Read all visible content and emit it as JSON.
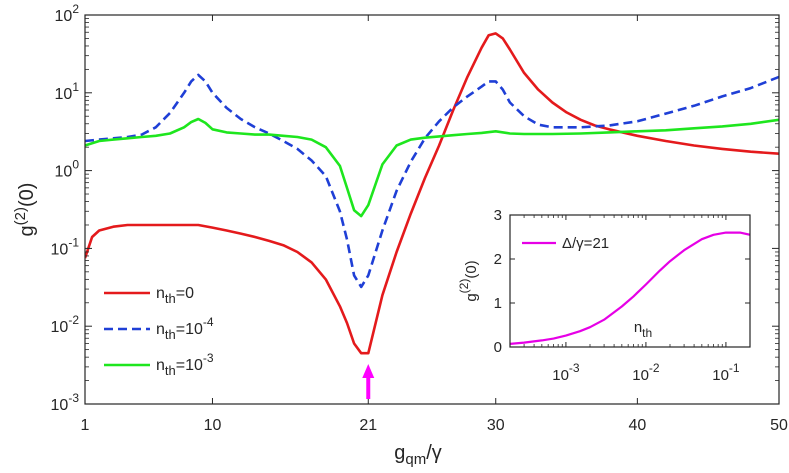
{
  "chart_data": [
    {
      "id": "main",
      "type": "line",
      "xscale": "linear",
      "yscale": "log",
      "xlim": [
        1,
        50
      ],
      "ylim": [
        0.001,
        100
      ],
      "xlabel": {
        "base": "g",
        "sub": "qm",
        "rest": "/γ"
      },
      "ylabel": {
        "base": "g",
        "sup": "(2)",
        "rest": "(0)"
      },
      "xticks": [
        1,
        10,
        21,
        30,
        40,
        50
      ],
      "xtick_labels": [
        "1",
        "10",
        "21",
        "30",
        "40",
        "50"
      ],
      "yticks": [
        0.001,
        0.01,
        0.1,
        1,
        10,
        100
      ],
      "ytick_labels": [
        {
          "base": "10",
          "exp": "-3"
        },
        {
          "base": "10",
          "exp": "-2"
        },
        {
          "base": "10",
          "exp": "-1"
        },
        {
          "base": "10",
          "exp": "0"
        },
        {
          "base": "10",
          "exp": "1"
        },
        {
          "base": "10",
          "exp": "2"
        }
      ],
      "legend_position": "bottom-left",
      "series": [
        {
          "name": "n_th=0",
          "label": {
            "base": "n",
            "sub": "th",
            "eq": "=0",
            "exp": ""
          },
          "color": "#e41a1c",
          "dash": "solid",
          "x": [
            1,
            1.5,
            2,
            3,
            4,
            5,
            6,
            7,
            8,
            9,
            10,
            11,
            12,
            13,
            14,
            15,
            16,
            17,
            18,
            19,
            19.5,
            20,
            20.5,
            21,
            22,
            23,
            24,
            25,
            26,
            27,
            28,
            29,
            29.5,
            30,
            30.5,
            31,
            32,
            33,
            34,
            35,
            36,
            37,
            38,
            40,
            42,
            44,
            46,
            48,
            50
          ],
          "y": [
            0.075,
            0.14,
            0.17,
            0.19,
            0.2,
            0.2,
            0.2,
            0.2,
            0.2,
            0.2,
            0.185,
            0.17,
            0.155,
            0.14,
            0.125,
            0.11,
            0.09,
            0.066,
            0.04,
            0.018,
            0.011,
            0.006,
            0.0045,
            0.0045,
            0.025,
            0.09,
            0.28,
            0.8,
            2.1,
            6,
            16,
            38,
            55,
            58,
            50,
            36,
            18,
            11,
            7.5,
            5.6,
            4.5,
            3.8,
            3.4,
            2.8,
            2.4,
            2.1,
            1.9,
            1.75,
            1.65
          ]
        },
        {
          "name": "n_th=10^-4",
          "label": {
            "base": "n",
            "sub": "th",
            "eq": "=10",
            "exp": "-4"
          },
          "color": "#1f3fd6",
          "dash": "dashed",
          "x": [
            1,
            2,
            3,
            4,
            5,
            6,
            7,
            8,
            8.5,
            9,
            9.5,
            10,
            11,
            12,
            13,
            14,
            15,
            16,
            17,
            18,
            19,
            19.5,
            20,
            20.5,
            21,
            22,
            23,
            24,
            25,
            26,
            27,
            28,
            29,
            29.5,
            30,
            30.5,
            31,
            32,
            33,
            34,
            35,
            36,
            38,
            40,
            42,
            44,
            46,
            48,
            50
          ],
          "y": [
            2.4,
            2.5,
            2.6,
            2.7,
            2.9,
            3.6,
            5.5,
            10,
            14,
            17,
            14,
            10,
            6.4,
            4.6,
            3.6,
            3,
            2.4,
            1.9,
            1.35,
            0.85,
            0.3,
            0.13,
            0.045,
            0.032,
            0.045,
            0.17,
            0.55,
            1.3,
            2.6,
            4.3,
            6.5,
            9,
            12,
            14,
            14,
            11,
            7.5,
            5,
            3.9,
            3.6,
            3.6,
            3.6,
            3.8,
            4.3,
            5.4,
            6.8,
            9,
            11.5,
            16
          ]
        },
        {
          "name": "n_th=10^-3",
          "label": {
            "base": "n",
            "sub": "th",
            "eq": "=10",
            "exp": "-3"
          },
          "color": "#1ee61e",
          "dash": "solid",
          "x": [
            1,
            2,
            3,
            4,
            5,
            6,
            7,
            8,
            8.5,
            9,
            9.5,
            10,
            11,
            12,
            13,
            14,
            15,
            16,
            17,
            18,
            19,
            19.5,
            20,
            20.5,
            21,
            22,
            23,
            24,
            25,
            26,
            27,
            28,
            29,
            30,
            31,
            32,
            34,
            36,
            38,
            40,
            42,
            44,
            46,
            48,
            50
          ],
          "y": [
            2.1,
            2.4,
            2.5,
            2.6,
            2.7,
            2.8,
            3,
            3.6,
            4.2,
            4.6,
            4.1,
            3.4,
            3.1,
            3,
            2.9,
            2.9,
            2.8,
            2.7,
            2.5,
            2,
            1.15,
            0.6,
            0.31,
            0.26,
            0.36,
            1.2,
            2.1,
            2.5,
            2.65,
            2.75,
            2.85,
            2.95,
            3.05,
            3.2,
            3,
            2.95,
            2.95,
            3,
            3.1,
            3.2,
            3.3,
            3.5,
            3.7,
            4,
            4.5
          ]
        }
      ],
      "annotation": {
        "type": "arrow",
        "x": 21,
        "color": "#ff00ff"
      }
    },
    {
      "id": "inset",
      "type": "line",
      "xscale": "log",
      "yscale": "linear",
      "xlim": [
        0.0002,
        0.2
      ],
      "ylim": [
        0,
        3
      ],
      "xlabel": {
        "base": "n",
        "sub": "th"
      },
      "ylabel": {
        "base": "g",
        "sup": "(2)",
        "rest": "(0)"
      },
      "xticks": [
        0.001,
        0.01,
        0.1
      ],
      "xtick_labels": [
        {
          "base": "10",
          "exp": "-3"
        },
        {
          "base": "10",
          "exp": "-2"
        },
        {
          "base": "10",
          "exp": "-1"
        }
      ],
      "yticks": [
        0,
        1,
        2,
        3
      ],
      "ytick_labels": [
        "0",
        "1",
        "2",
        "3"
      ],
      "legend_position": "top-left",
      "series": [
        {
          "name": "Δ/γ=21",
          "label": "Δ/γ=21",
          "color": "#e600e6",
          "dash": "solid",
          "x": [
            0.0002,
            0.0003,
            0.0005,
            0.0007,
            0.001,
            0.0015,
            0.002,
            0.003,
            0.005,
            0.007,
            0.01,
            0.015,
            0.02,
            0.03,
            0.05,
            0.07,
            0.1,
            0.15,
            0.2
          ],
          "y": [
            0.07,
            0.1,
            0.15,
            0.19,
            0.26,
            0.36,
            0.45,
            0.62,
            0.92,
            1.15,
            1.42,
            1.74,
            1.95,
            2.2,
            2.45,
            2.55,
            2.6,
            2.6,
            2.55
          ]
        }
      ]
    }
  ]
}
